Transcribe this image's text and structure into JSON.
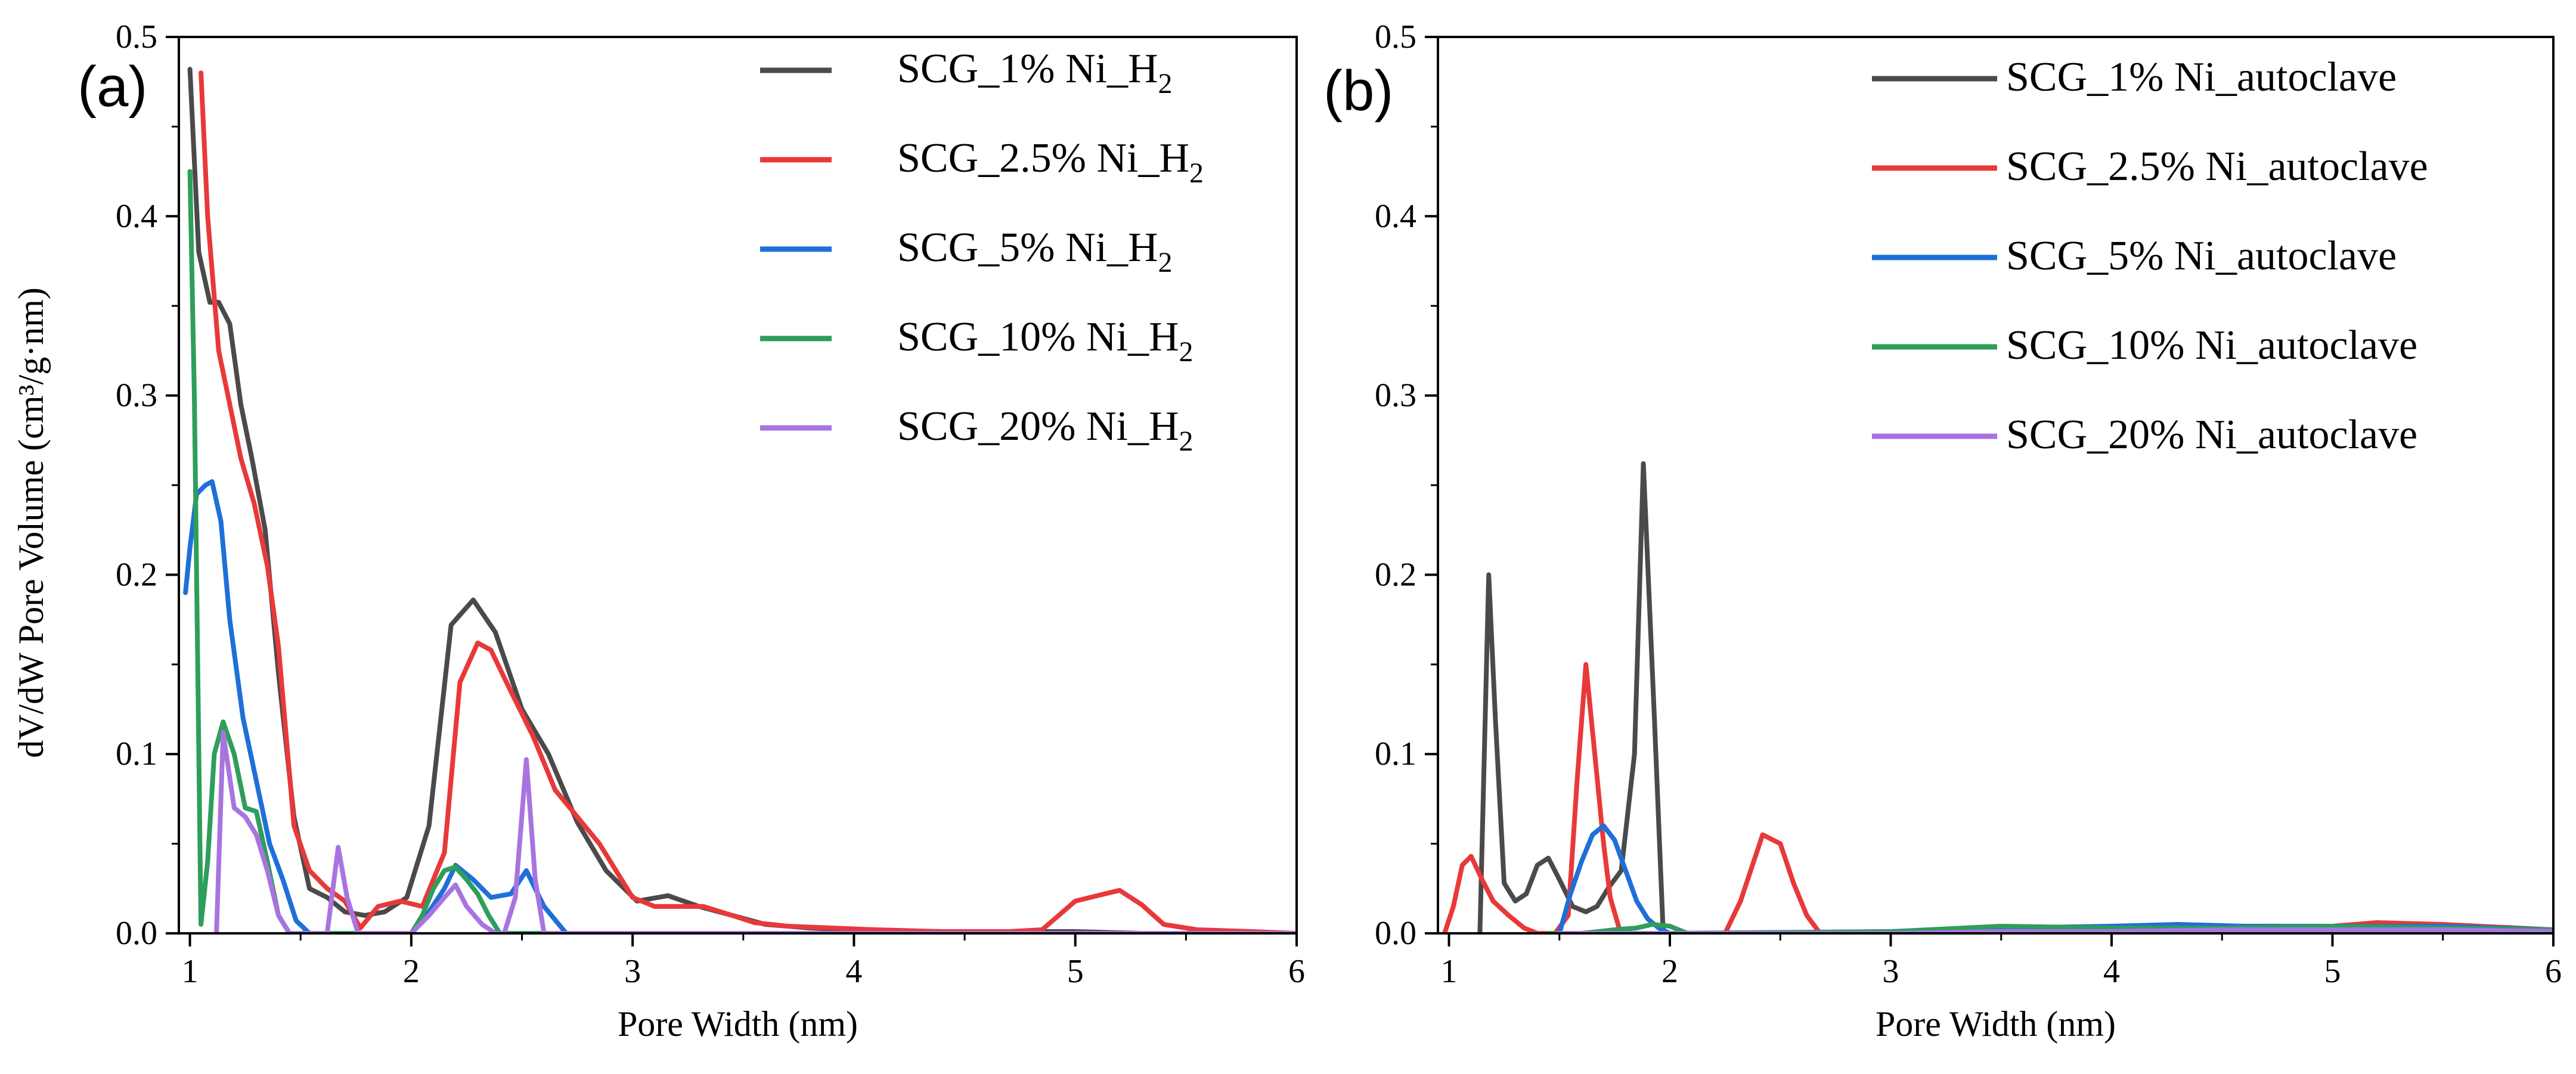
{
  "figure": {
    "ylabel": "dV/dW Pore Volume (cm³/g·nm)"
  },
  "chart_data": [
    {
      "type": "line",
      "panel_label": "(a)",
      "xlabel": "Pore Width (nm)",
      "ylabel": "dV/dW Pore Volume (cm³/g·nm)",
      "xlim": [
        0.95,
        6
      ],
      "ylim": [
        0,
        0.5
      ],
      "x_ticks": [
        "1",
        "2",
        "3",
        "4",
        "5",
        "6"
      ],
      "x_tick_values": [
        1,
        2,
        3,
        4,
        5,
        6
      ],
      "y_ticks": [
        "0.0",
        "0.1",
        "0.2",
        "0.3",
        "0.4",
        "0.5"
      ],
      "y_tick_values": [
        0,
        0.1,
        0.2,
        0.3,
        0.4,
        0.5
      ],
      "legend_position": "top-right",
      "series": [
        {
          "name": "SCG_1% Ni_H₂",
          "legend_main": "SCG_1% Ni_H",
          "legend_sub": "2",
          "color": "#4a4a4a",
          "x": [
            1.0,
            1.04,
            1.09,
            1.13,
            1.18,
            1.23,
            1.28,
            1.34,
            1.4,
            1.47,
            1.54,
            1.62,
            1.7,
            1.79,
            1.88,
            1.98,
            2.08,
            2.18,
            2.28,
            2.38,
            2.5,
            2.62,
            2.75,
            2.88,
            3.02,
            3.16,
            3.3,
            3.45,
            3.6,
            3.8,
            4.0,
            4.25,
            4.5,
            4.75,
            5.0,
            5.3,
            5.6,
            6.0
          ],
          "y": [
            0.482,
            0.38,
            0.352,
            0.352,
            0.34,
            0.295,
            0.265,
            0.225,
            0.145,
            0.065,
            0.025,
            0.02,
            0.012,
            0.01,
            0.012,
            0.02,
            0.06,
            0.172,
            0.186,
            0.168,
            0.125,
            0.1,
            0.062,
            0.035,
            0.018,
            0.021,
            0.015,
            0.01,
            0.005,
            0.003,
            0.002,
            0.001,
            0.001,
            0.001,
            0.001,
            0.0,
            0.0,
            0.0
          ]
        },
        {
          "name": "SCG_2.5% Ni_H₂",
          "legend_main": "SCG_2.5% Ni_H",
          "legend_sub": "2",
          "color": "#e8393a",
          "x": [
            1.05,
            1.08,
            1.13,
            1.18,
            1.23,
            1.29,
            1.35,
            1.4,
            1.47,
            1.54,
            1.62,
            1.7,
            1.77,
            1.85,
            1.95,
            2.05,
            2.15,
            2.22,
            2.3,
            2.36,
            2.45,
            2.55,
            2.65,
            2.75,
            2.85,
            2.95,
            3.0,
            3.1,
            3.2,
            3.32,
            3.45,
            3.55,
            3.7,
            3.9,
            4.1,
            4.4,
            4.7,
            4.85,
            5.0,
            5.1,
            5.2,
            5.3,
            5.4,
            5.55,
            5.8,
            6.0
          ],
          "y": [
            0.48,
            0.4,
            0.325,
            0.295,
            0.265,
            0.24,
            0.205,
            0.16,
            0.06,
            0.035,
            0.025,
            0.018,
            0.003,
            0.015,
            0.018,
            0.015,
            0.045,
            0.14,
            0.162,
            0.158,
            0.135,
            0.11,
            0.08,
            0.065,
            0.05,
            0.03,
            0.02,
            0.015,
            0.015,
            0.015,
            0.01,
            0.006,
            0.004,
            0.003,
            0.002,
            0.001,
            0.001,
            0.002,
            0.018,
            0.021,
            0.024,
            0.016,
            0.005,
            0.002,
            0.001,
            0.0
          ]
        },
        {
          "name": "SCG_5% Ni_H₂",
          "legend_main": "SCG_5% Ni_H",
          "legend_sub": "2",
          "color": "#1f6fd8",
          "x": [
            0.98,
            1.0,
            1.03,
            1.07,
            1.1,
            1.14,
            1.18,
            1.24,
            1.3,
            1.36,
            1.42,
            1.48,
            1.54,
            1.6,
            2.0,
            2.08,
            2.15,
            2.2,
            2.28,
            2.36,
            2.45,
            2.52,
            2.6,
            2.7,
            2.8,
            3.0,
            3.5,
            4.0,
            4.5,
            5.0,
            5.5,
            6.0
          ],
          "y": [
            0.19,
            0.215,
            0.245,
            0.25,
            0.252,
            0.23,
            0.175,
            0.12,
            0.085,
            0.05,
            0.03,
            0.007,
            0.0,
            0.0,
            0.0,
            0.012,
            0.025,
            0.038,
            0.03,
            0.02,
            0.022,
            0.035,
            0.015,
            0.0,
            0.0,
            0.0,
            0.0,
            0.0,
            0.0,
            0.0,
            0.0,
            0.0
          ]
        },
        {
          "name": "SCG_10% Ni_H₂",
          "legend_main": "SCG_10% Ni_H",
          "legend_sub": "2",
          "color": "#2e9e5b",
          "x": [
            1.0,
            1.02,
            1.05,
            1.08,
            1.11,
            1.15,
            1.2,
            1.25,
            1.3,
            1.35,
            1.4,
            1.45,
            1.5,
            1.55,
            2.0,
            2.05,
            2.1,
            2.15,
            2.2,
            2.25,
            2.3,
            2.35,
            2.4,
            2.45,
            3.0,
            4.0,
            5.0,
            6.0
          ],
          "y": [
            0.425,
            0.3,
            0.005,
            0.04,
            0.1,
            0.118,
            0.1,
            0.07,
            0.068,
            0.04,
            0.01,
            0.0,
            0.0,
            0.0,
            0.0,
            0.01,
            0.025,
            0.035,
            0.037,
            0.03,
            0.022,
            0.01,
            0.0,
            0.0,
            0.0,
            0.0,
            0.0,
            0.0
          ]
        },
        {
          "name": "SCG_20% Ni_H₂",
          "legend_main": "SCG_20% Ni_H",
          "legend_sub": "2",
          "color": "#a874e0",
          "x": [
            1.12,
            1.15,
            1.2,
            1.25,
            1.3,
            1.35,
            1.4,
            1.45,
            1.55,
            1.62,
            1.67,
            1.71,
            1.76,
            2.0,
            2.08,
            2.15,
            2.2,
            2.25,
            2.32,
            2.38,
            2.42,
            2.47,
            2.52,
            2.56,
            2.6,
            3.0,
            4.0,
            5.0,
            6.0
          ],
          "y": [
            0.0,
            0.112,
            0.07,
            0.065,
            0.055,
            0.035,
            0.01,
            0.0,
            0.0,
            0.0,
            0.048,
            0.02,
            0.0,
            0.0,
            0.01,
            0.02,
            0.027,
            0.015,
            0.005,
            0.0,
            0.0,
            0.02,
            0.097,
            0.03,
            0.0,
            0.0,
            0.0,
            0.0,
            0.0
          ]
        }
      ]
    },
    {
      "type": "line",
      "panel_label": "(b)",
      "xlabel": "Pore Width (nm)",
      "ylabel": "",
      "xlim": [
        0.95,
        6
      ],
      "ylim": [
        0,
        0.5
      ],
      "x_ticks": [
        "1",
        "2",
        "3",
        "4",
        "5",
        "6"
      ],
      "x_tick_values": [
        1,
        2,
        3,
        4,
        5,
        6
      ],
      "y_ticks": [
        "0.0",
        "0.1",
        "0.2",
        "0.3",
        "0.4",
        "0.5"
      ],
      "y_tick_values": [
        0,
        0.1,
        0.2,
        0.3,
        0.4,
        0.5
      ],
      "legend_position": "top-right",
      "series": [
        {
          "name": "SCG_1% Ni_autoclave",
          "legend_main": "SCG_1% Ni_autoclave",
          "legend_sub": "",
          "color": "#4a4a4a",
          "x": [
            1.14,
            1.18,
            1.21,
            1.25,
            1.3,
            1.35,
            1.4,
            1.45,
            1.5,
            1.56,
            1.62,
            1.67,
            1.72,
            1.78,
            1.84,
            1.88,
            1.93,
            1.97,
            2.02,
            2.1,
            3.0,
            4.0,
            5.0,
            6.0
          ],
          "y": [
            0.0,
            0.2,
            0.12,
            0.028,
            0.018,
            0.022,
            0.038,
            0.042,
            0.03,
            0.015,
            0.012,
            0.015,
            0.025,
            0.035,
            0.1,
            0.262,
            0.12,
            0.0,
            0.0,
            0.0,
            0.0,
            0.0,
            0.0,
            0.0
          ]
        },
        {
          "name": "SCG_2.5% Ni_autoclave",
          "legend_main": "SCG_2.5% Ni_autoclave",
          "legend_sub": "",
          "color": "#e8393a",
          "x": [
            0.98,
            1.02,
            1.06,
            1.1,
            1.15,
            1.2,
            1.27,
            1.34,
            1.4,
            1.48,
            1.54,
            1.58,
            1.62,
            1.66,
            1.7,
            1.73,
            1.77,
            1.82,
            2.25,
            2.32,
            2.42,
            2.5,
            2.56,
            2.62,
            2.68,
            3.0,
            4.0,
            5.0,
            5.2,
            5.5,
            6.0
          ],
          "y": [
            0.0,
            0.015,
            0.038,
            0.043,
            0.03,
            0.018,
            0.01,
            0.003,
            0.0,
            0.0,
            0.01,
            0.085,
            0.15,
            0.1,
            0.05,
            0.02,
            0.003,
            0.0,
            0.0,
            0.018,
            0.055,
            0.05,
            0.028,
            0.01,
            0.0,
            0.0,
            0.0,
            0.004,
            0.006,
            0.005,
            0.002
          ]
        },
        {
          "name": "SCG_5% Ni_autoclave",
          "legend_main": "SCG_5% Ni_autoclave",
          "legend_sub": "",
          "color": "#1f6fd8",
          "x": [
            1.5,
            1.55,
            1.6,
            1.65,
            1.7,
            1.75,
            1.8,
            1.85,
            1.9,
            1.95,
            2.0,
            3.0,
            3.5,
            4.0,
            4.3,
            4.6,
            5.0,
            5.5,
            6.0
          ],
          "y": [
            0.0,
            0.022,
            0.04,
            0.055,
            0.06,
            0.052,
            0.035,
            0.018,
            0.008,
            0.003,
            0.0,
            0.001,
            0.003,
            0.004,
            0.005,
            0.004,
            0.004,
            0.004,
            0.002
          ]
        },
        {
          "name": "SCG_10% Ni_autoclave",
          "legend_main": "SCG_10% Ni_autoclave",
          "legend_sub": "",
          "color": "#2e9e5b",
          "x": [
            1.45,
            1.6,
            1.75,
            1.85,
            1.92,
            2.0,
            2.08,
            3.0,
            3.5,
            4.0,
            4.5,
            5.0,
            5.5,
            6.0
          ],
          "y": [
            0.0,
            0.0,
            0.002,
            0.003,
            0.005,
            0.004,
            0.0,
            0.001,
            0.004,
            0.003,
            0.003,
            0.004,
            0.003,
            0.002
          ]
        },
        {
          "name": "SCG_20% Ni_autoclave",
          "legend_main": "SCG_20% Ni_autoclave",
          "legend_sub": "",
          "color": "#a874e0",
          "x": [
            1.5,
            2.0,
            2.5,
            3.0,
            3.5,
            4.0,
            4.5,
            5.0,
            5.5,
            6.0
          ],
          "y": [
            0.0,
            0.0,
            0.0,
            0.0,
            0.001,
            0.001,
            0.002,
            0.002,
            0.002,
            0.001
          ]
        }
      ]
    }
  ]
}
